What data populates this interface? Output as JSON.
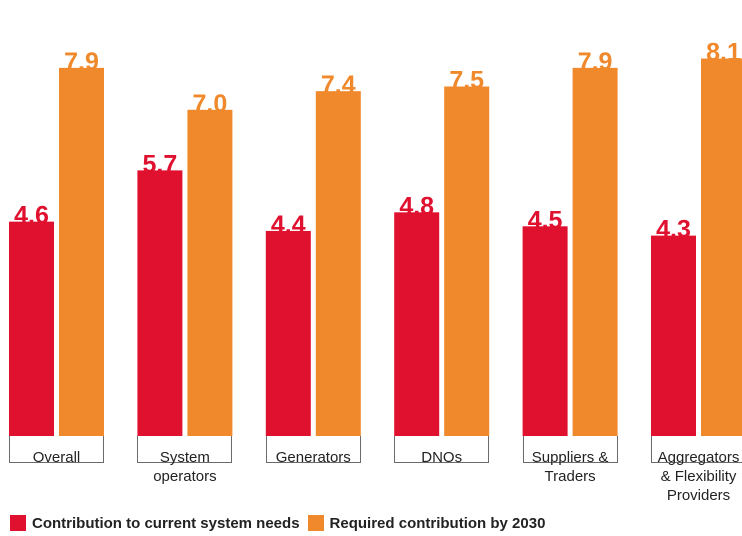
{
  "chart_data": {
    "type": "bar",
    "categories": [
      "Overall",
      "System operators",
      "Generators",
      "DNOs",
      "Suppliers & Traders",
      "Aggregators & Flexibility Providers"
    ],
    "category_lines": [
      [
        "Overall"
      ],
      [
        "System",
        "operators"
      ],
      [
        "Generators"
      ],
      [
        "DNOs"
      ],
      [
        "Suppliers &",
        "Traders"
      ],
      [
        "Aggregators",
        "& Flexibility",
        "Providers"
      ]
    ],
    "series": [
      {
        "name": "Contribution to current system needs",
        "color": "#e0102f",
        "values": [
          4.6,
          5.7,
          4.4,
          4.8,
          4.5,
          4.3
        ],
        "labels": [
          "4.6",
          "5.7",
          "4.4",
          "4.8",
          "4.5",
          "4.3"
        ]
      },
      {
        "name": "Required contribution by 2030",
        "color": "#f0892b",
        "values": [
          7.9,
          7.0,
          7.4,
          7.5,
          7.9,
          8.1
        ],
        "labels": [
          "7.9",
          "7.0",
          "7.4",
          "7.5",
          "7.9",
          "8.1"
        ]
      }
    ],
    "ylim": [
      0,
      10
    ],
    "grid": false,
    "legend_position": "bottom-left"
  }
}
